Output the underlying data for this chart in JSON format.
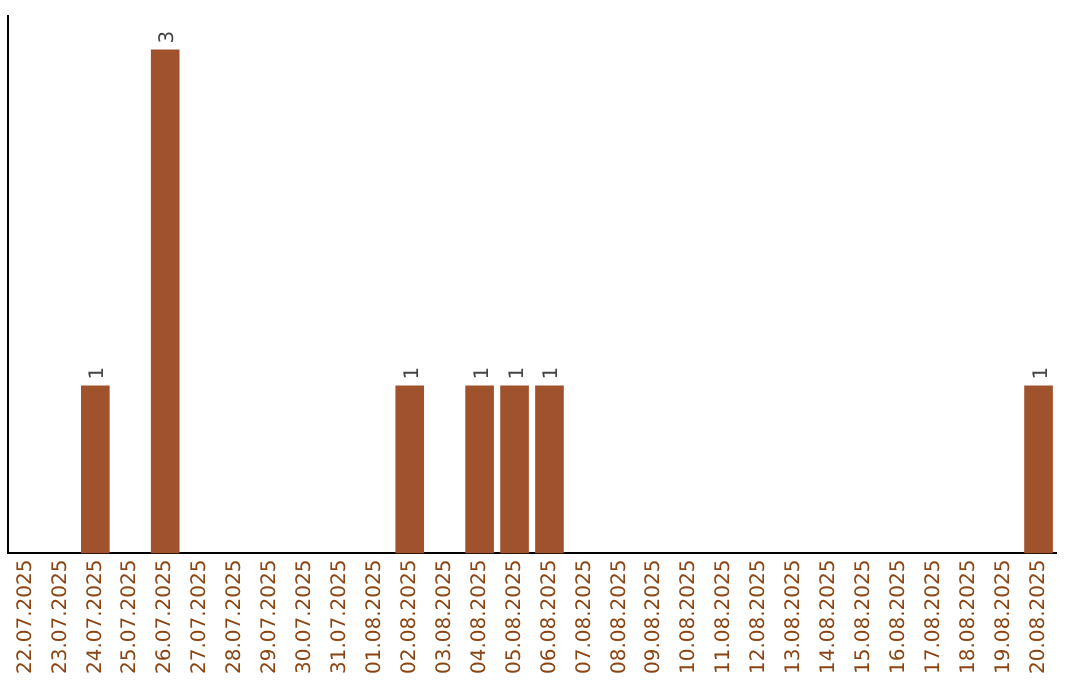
{
  "chart_data": {
    "type": "bar",
    "categories": [
      "22.07.2025",
      "23.07.2025",
      "24.07.2025",
      "25.07.2025",
      "26.07.2025",
      "27.07.2025",
      "28.07.2025",
      "29.07.2025",
      "30.07.2025",
      "31.07.2025",
      "01.08.2025",
      "02.08.2025",
      "03.08.2025",
      "04.08.2025",
      "05.08.2025",
      "06.08.2025",
      "07.08.2025",
      "08.08.2025",
      "09.08.2025",
      "10.08.2025",
      "11.08.2025",
      "12.08.2025",
      "13.08.2025",
      "14.08.2025",
      "15.08.2025",
      "16.08.2025",
      "17.08.2025",
      "18.08.2025",
      "19.08.2025",
      "20.08.2025"
    ],
    "values": [
      0,
      0,
      1,
      0,
      3,
      0,
      0,
      0,
      0,
      0,
      0,
      1,
      0,
      1,
      1,
      1,
      0,
      0,
      0,
      0,
      0,
      0,
      0,
      0,
      0,
      0,
      0,
      0,
      0,
      1
    ],
    "value_labels": [
      null,
      null,
      "1",
      null,
      "3",
      null,
      null,
      null,
      null,
      null,
      null,
      "1",
      null,
      "1",
      "1",
      "1",
      null,
      null,
      null,
      null,
      null,
      null,
      null,
      null,
      null,
      null,
      null,
      null,
      null,
      "1"
    ],
    "color": "#a0522d",
    "ylim": [
      0,
      3.2
    ],
    "tick_labels": "x",
    "grid": false,
    "legend": false
  }
}
